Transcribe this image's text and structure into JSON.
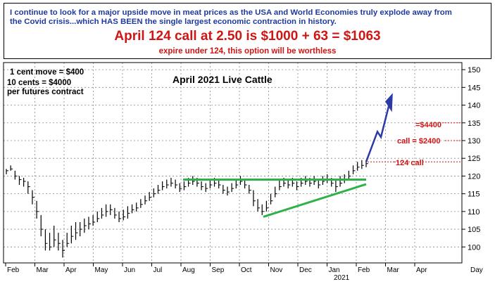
{
  "banner": {
    "line1": "I continue to look for a major upside move in meat prices as the USA and World Economies truly explode away from",
    "line2": "the Covid crisis...which HAS BEEN the single largest economic contraction in history.",
    "headline": "April 124 call at 2.50 is $1000 + 63 = $1063",
    "subline": "expire under 124, this option will be worthless"
  },
  "colors": {
    "blue_text": "#1f3aa0",
    "red_text": "#d01515",
    "green_line": "#2fb14a",
    "projection": "#2b3aa6",
    "grid": "#8a8a8a",
    "bars": "#000000"
  },
  "chart_data": {
    "type": "bar",
    "title": "April 2021 Live Cattle",
    "notes": [
      "1 cent move = $400",
      "10 cents = $4000",
      "per futures contract"
    ],
    "y_ticks": [
      100,
      105,
      110,
      115,
      120,
      125,
      130,
      135,
      140,
      145,
      150
    ],
    "ylim": [
      95.5,
      152
    ],
    "x_ticks": [
      "Feb",
      "Mar",
      "Apr",
      "May",
      "Jun",
      "Jul",
      "Aug",
      "Sep",
      "Oct",
      "Nov",
      "Dec",
      "Jan",
      "Feb",
      "Mar",
      "Apr"
    ],
    "x_label": "Day",
    "year_label": "2021",
    "grid": true,
    "series": [
      {
        "values": [
          [
            121.5,
            122,
            120.5
          ],
          [
            122,
            123,
            121.5
          ],
          [
            120,
            121.5,
            119
          ],
          [
            119,
            120,
            117.5
          ],
          [
            118.5,
            119.5,
            117
          ],
          [
            117,
            118.5,
            115
          ],
          [
            114,
            116,
            112
          ],
          [
            110,
            113,
            108
          ],
          [
            105,
            109,
            103
          ],
          [
            101,
            105,
            99
          ],
          [
            100,
            104,
            99
          ],
          [
            102,
            106,
            100
          ],
          [
            101,
            104,
            99
          ],
          [
            99,
            102,
            97
          ],
          [
            101,
            104,
            100
          ],
          [
            103,
            106,
            101
          ],
          [
            104,
            107,
            102
          ],
          [
            105,
            107,
            103
          ],
          [
            106,
            108,
            104
          ],
          [
            106.5,
            108.5,
            105
          ],
          [
            107,
            109,
            106
          ],
          [
            108,
            110,
            107
          ],
          [
            109,
            111,
            108
          ],
          [
            110,
            112,
            108.5
          ],
          [
            110.5,
            112,
            109
          ],
          [
            109,
            111,
            108
          ],
          [
            108,
            110,
            107
          ],
          [
            108.5,
            110.5,
            107.5
          ],
          [
            109.5,
            111.5,
            108
          ],
          [
            110.5,
            112,
            109.5
          ],
          [
            111,
            112.5,
            110
          ],
          [
            112,
            113.5,
            111
          ],
          [
            113,
            114.5,
            112
          ],
          [
            114,
            115.5,
            113
          ],
          [
            115,
            116.5,
            114
          ],
          [
            116,
            117.5,
            115
          ],
          [
            117,
            118.5,
            116
          ],
          [
            117.5,
            119,
            116.5
          ],
          [
            118,
            119.5,
            117
          ],
          [
            117.5,
            119,
            116.5
          ],
          [
            116.5,
            118,
            115.5
          ],
          [
            117,
            118.5,
            116
          ],
          [
            118,
            119.5,
            117
          ],
          [
            118.5,
            120,
            117.5
          ],
          [
            118,
            119.5,
            117
          ],
          [
            117,
            118.5,
            116
          ],
          [
            116.5,
            118,
            115.5
          ],
          [
            117.5,
            119,
            116.5
          ],
          [
            118,
            119.5,
            117
          ],
          [
            117.5,
            119,
            116.5
          ],
          [
            116,
            117.5,
            115
          ],
          [
            115.5,
            117,
            114.5
          ],
          [
            116.5,
            118,
            115.5
          ],
          [
            117.5,
            119,
            116.5
          ],
          [
            118.5,
            120,
            117.5
          ],
          [
            117.5,
            119,
            116.5
          ],
          [
            116,
            117.5,
            115
          ],
          [
            113,
            116,
            111.5
          ],
          [
            111,
            113.5,
            110
          ],
          [
            110,
            112,
            109
          ],
          [
            111,
            113,
            110
          ],
          [
            113,
            115,
            112
          ],
          [
            115,
            117,
            114
          ],
          [
            117,
            119,
            116
          ],
          [
            118,
            119.5,
            117
          ],
          [
            117.5,
            119,
            116.5
          ],
          [
            118,
            119.5,
            117
          ],
          [
            117,
            118.5,
            116
          ],
          [
            118,
            119.5,
            117
          ],
          [
            118.5,
            120,
            117.5
          ],
          [
            118,
            119.5,
            117
          ],
          [
            118.5,
            120,
            117.5
          ],
          [
            117.5,
            119,
            116.5
          ],
          [
            118.5,
            120,
            117.5
          ],
          [
            119,
            120.5,
            118
          ],
          [
            118,
            119.5,
            117
          ],
          [
            117,
            119,
            115.5
          ],
          [
            118,
            120,
            117
          ],
          [
            119,
            120.5,
            118
          ],
          [
            120,
            121.5,
            119
          ],
          [
            121.5,
            123,
            120.5
          ],
          [
            122.5,
            124,
            121.5
          ],
          [
            123,
            124.5,
            122
          ],
          [
            123.5,
            124.5,
            122.5
          ]
        ]
      }
    ],
    "annotations": {
      "support_line": "resistance/support",
      "price_labels": [
        "=$4400",
        "call = $2400",
        "124 call"
      ]
    }
  }
}
